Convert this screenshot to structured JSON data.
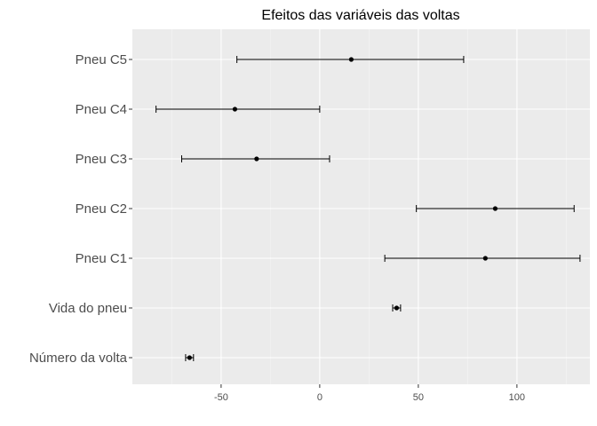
{
  "chart_data": {
    "type": "scatter",
    "subtype": "coefficient-errorbar",
    "title": "Efeitos das variáveis das voltas",
    "xlabel": "",
    "ylabel": "",
    "xlim": [
      -95,
      137
    ],
    "x_ticks": [
      -50,
      0,
      50,
      100
    ],
    "x_tick_labels": [
      "-50",
      "0",
      "50",
      "100"
    ],
    "grid": true,
    "legend": "none",
    "categories": [
      "Pneu C5",
      "Pneu C4",
      "Pneu C3",
      "Pneu C2",
      "Pneu C1",
      "Vida do pneu",
      "Número da volta"
    ],
    "points": [
      {
        "label": "Pneu C5",
        "estimate": 16,
        "lower": -42,
        "upper": 73
      },
      {
        "label": "Pneu C4",
        "estimate": -43,
        "lower": -83,
        "upper": 0
      },
      {
        "label": "Pneu C3",
        "estimate": -32,
        "lower": -70,
        "upper": 5
      },
      {
        "label": "Pneu C2",
        "estimate": 89,
        "lower": 49,
        "upper": 129
      },
      {
        "label": "Pneu C1",
        "estimate": 84,
        "lower": 33,
        "upper": 132
      },
      {
        "label": "Vida do pneu",
        "estimate": 39,
        "lower": 37,
        "upper": 41
      },
      {
        "label": "Número da volta",
        "estimate": -66,
        "lower": -68,
        "upper": -64
      }
    ]
  },
  "colors": {
    "panel_background": "#ebebeb",
    "grid_major": "#ffffff",
    "grid_minor": "#f5f5f5",
    "point": "#000000",
    "errorbar": "#000000"
  }
}
